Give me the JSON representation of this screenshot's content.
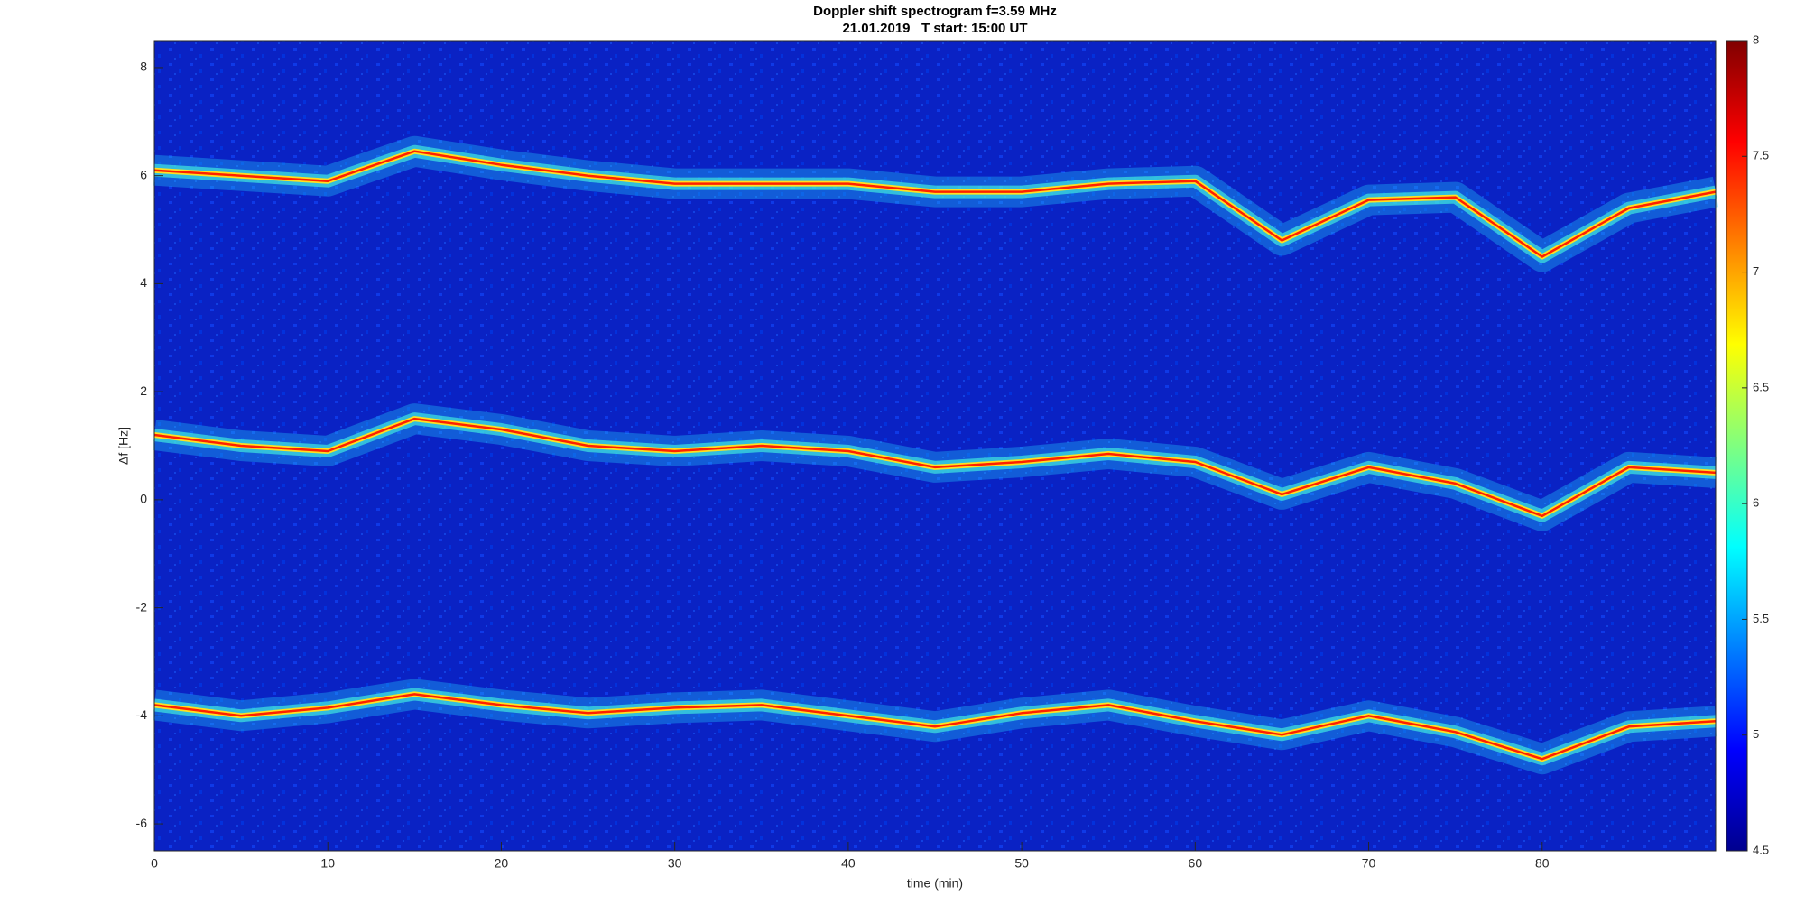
{
  "chart_data": {
    "type": "spectrogram",
    "title": "Doppler shift spectrogram f=3.59 MHz",
    "subtitle": "21.01.2019   T start: 15:00 UT",
    "xlabel": "time (min)",
    "ylabel": "Δf [Hz]",
    "xlim": [
      0,
      90
    ],
    "xticks": [
      0,
      10,
      20,
      30,
      40,
      50,
      60,
      70,
      80
    ],
    "ylim": [
      -6.5,
      8.5
    ],
    "yticks": [
      -6,
      -4,
      -2,
      0,
      2,
      4,
      6,
      8
    ],
    "x": [
      0,
      5,
      10,
      15,
      20,
      25,
      30,
      35,
      40,
      45,
      50,
      55,
      60,
      65,
      70,
      75,
      80,
      85,
      90
    ],
    "series": [
      {
        "color": "#ff2000",
        "values": [
          6.1,
          6.0,
          5.9,
          6.45,
          6.2,
          6.0,
          5.85,
          5.85,
          5.85,
          5.7,
          5.7,
          5.85,
          5.9,
          4.8,
          5.55,
          5.6,
          4.5,
          5.4,
          5.7
        ]
      },
      {
        "color": "#ff2000",
        "values": [
          1.2,
          1.0,
          0.9,
          1.5,
          1.3,
          1.0,
          0.9,
          1.0,
          0.9,
          0.6,
          0.7,
          0.85,
          0.7,
          0.1,
          0.6,
          0.3,
          -0.3,
          0.6,
          0.5
        ]
      },
      {
        "color": "#ff2000",
        "values": [
          -3.8,
          -4.0,
          -3.85,
          -3.6,
          -3.8,
          -3.95,
          -3.85,
          -3.8,
          -4.0,
          -4.2,
          -3.95,
          -3.8,
          -4.1,
          -4.35,
          -4.0,
          -4.3,
          -4.8,
          -4.2,
          -4.1
        ]
      }
    ],
    "colorbar": {
      "clim": [
        4.5,
        8
      ],
      "ticks": [
        4.5,
        5,
        5.5,
        6,
        6.5,
        7,
        7.5,
        8
      ],
      "colormap": "jet"
    }
  }
}
